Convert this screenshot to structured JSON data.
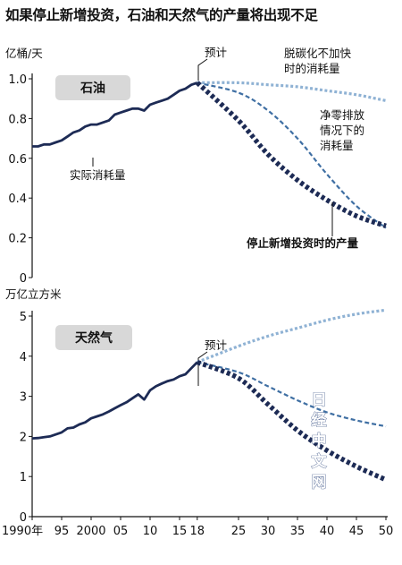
{
  "title": "如果停止新增投资，石油和天然气的产量将出现不足",
  "colors": {
    "actual": "#1d2b55",
    "stop_new_investment": "#1d2b55",
    "net_zero": "#3f6fa3",
    "no_acceleration": "#8fb2d4",
    "label_box": "#d8d8d8"
  },
  "x_tick_labels": [
    "1990年",
    "95",
    "2000",
    "05",
    "10",
    "15",
    "18",
    "25",
    "30",
    "35",
    "40",
    "45",
    "50"
  ],
  "chart_data": [
    {
      "type": "line",
      "panel_label": "石油",
      "ylabel": "亿桶/天",
      "ylim": [
        0,
        1.0
      ],
      "yticks": [
        "0",
        "0.2",
        "0.4",
        "0.6",
        "0.8",
        "1.0"
      ],
      "xlim": [
        1990,
        2050
      ],
      "forecast_label": "预计",
      "series": [
        {
          "key": "actual",
          "label": "实际消耗量",
          "style": "solid",
          "x": [
            1990,
            1991,
            1992,
            1993,
            1994,
            1995,
            1996,
            1997,
            1998,
            1999,
            2000,
            2001,
            2002,
            2003,
            2004,
            2005,
            2006,
            2007,
            2008,
            2009,
            2010,
            2011,
            2012,
            2013,
            2014,
            2015,
            2016,
            2017,
            2018
          ],
          "y": [
            0.66,
            0.66,
            0.67,
            0.67,
            0.68,
            0.69,
            0.71,
            0.73,
            0.74,
            0.76,
            0.77,
            0.77,
            0.78,
            0.79,
            0.82,
            0.83,
            0.84,
            0.85,
            0.85,
            0.84,
            0.87,
            0.88,
            0.89,
            0.9,
            0.92,
            0.94,
            0.95,
            0.97,
            0.98
          ]
        },
        {
          "key": "no_acceleration",
          "label": "脱碳化不加快时的消耗量",
          "style": "dotted",
          "x": [
            2018,
            2025,
            2030,
            2035,
            2040,
            2045,
            2050
          ],
          "y": [
            0.98,
            0.98,
            0.97,
            0.96,
            0.94,
            0.92,
            0.89
          ]
        },
        {
          "key": "net_zero",
          "label": "净零排放情况下的消耗量",
          "style": "dashed",
          "x": [
            2018,
            2025,
            2030,
            2035,
            2040,
            2045,
            2050
          ],
          "y": [
            0.98,
            0.93,
            0.84,
            0.7,
            0.52,
            0.36,
            0.25
          ]
        },
        {
          "key": "stop_new_investment",
          "label": "停止新增投资时的产量",
          "style": "thick-dotted",
          "x": [
            2018,
            2025,
            2030,
            2035,
            2040,
            2045,
            2050
          ],
          "y": [
            0.98,
            0.79,
            0.62,
            0.49,
            0.39,
            0.31,
            0.26
          ]
        }
      ]
    },
    {
      "type": "line",
      "panel_label": "天然气",
      "ylabel": "万亿立方米",
      "ylim": [
        0,
        5
      ],
      "yticks": [
        "0",
        "1",
        "2",
        "3",
        "4",
        "5"
      ],
      "xlim": [
        1990,
        2050
      ],
      "forecast_label": "预计",
      "series": [
        {
          "key": "actual",
          "style": "solid",
          "x": [
            1990,
            1991,
            1992,
            1993,
            1994,
            1995,
            1996,
            1997,
            1998,
            1999,
            2000,
            2001,
            2002,
            2003,
            2004,
            2005,
            2006,
            2007,
            2008,
            2009,
            2010,
            2011,
            2012,
            2013,
            2014,
            2015,
            2016,
            2017,
            2018
          ],
          "y": [
            1.95,
            1.96,
            1.98,
            2.0,
            2.05,
            2.1,
            2.2,
            2.22,
            2.3,
            2.35,
            2.45,
            2.5,
            2.55,
            2.62,
            2.7,
            2.78,
            2.85,
            2.95,
            3.05,
            2.92,
            3.15,
            3.25,
            3.32,
            3.38,
            3.42,
            3.5,
            3.55,
            3.7,
            3.85
          ]
        },
        {
          "key": "no_acceleration",
          "style": "dotted",
          "x": [
            2018,
            2025,
            2030,
            2035,
            2040,
            2045,
            2050
          ],
          "y": [
            3.85,
            4.25,
            4.5,
            4.7,
            4.9,
            5.05,
            5.15
          ]
        },
        {
          "key": "net_zero",
          "style": "dashed",
          "x": [
            2018,
            2025,
            2030,
            2035,
            2040,
            2045,
            2050
          ],
          "y": [
            3.85,
            3.6,
            3.25,
            2.9,
            2.6,
            2.4,
            2.25
          ]
        },
        {
          "key": "stop_new_investment",
          "style": "thick-dotted",
          "x": [
            2018,
            2025,
            2030,
            2035,
            2040,
            2045,
            2050
          ],
          "y": [
            3.85,
            3.45,
            2.8,
            2.15,
            1.65,
            1.25,
            0.92
          ]
        }
      ]
    }
  ],
  "watermark": [
    "日",
    "经",
    "中",
    "文",
    "网"
  ]
}
